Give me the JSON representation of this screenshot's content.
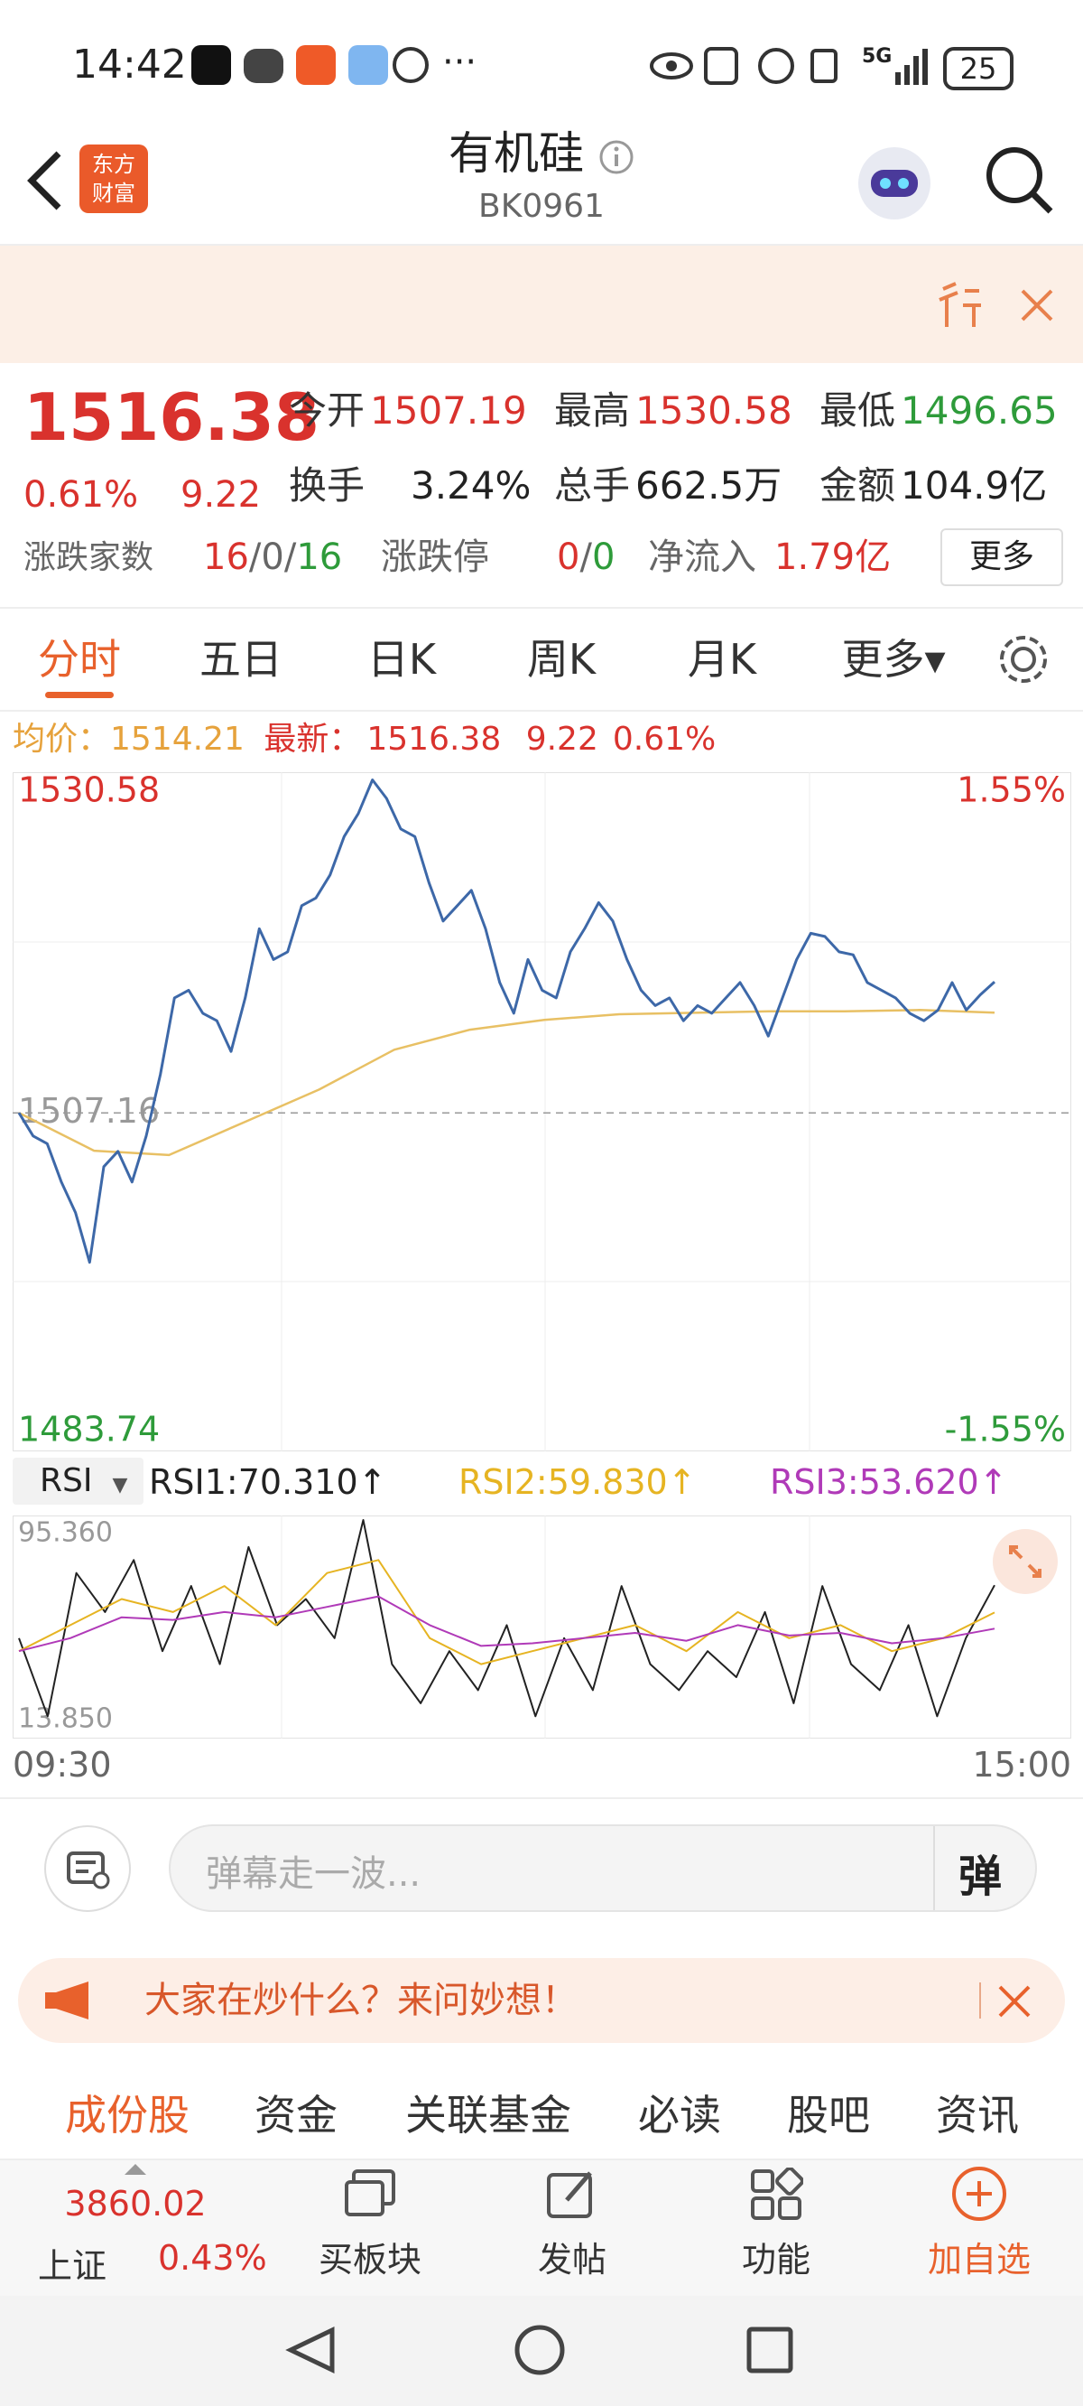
{
  "status_bar": {
    "time": "14:42",
    "network": "5G",
    "battery": "25"
  },
  "header": {
    "logo": [
      "东方",
      "财富"
    ],
    "title": "有机硅",
    "code": "BK0961"
  },
  "quote": {
    "price": "1516.38",
    "change_pct": "0.61%",
    "change": "9.22",
    "fields": [
      {
        "label": "今开",
        "value": "1507.19"
      },
      {
        "label": "最高",
        "value": "1530.58"
      },
      {
        "label": "最低",
        "value": "1496.65"
      },
      {
        "label": "换手",
        "value": "3.24%"
      },
      {
        "label": "总手",
        "value": "662.5万"
      },
      {
        "label": "金额",
        "value": "104.9亿"
      }
    ],
    "breadth": {
      "label": "涨跌家数",
      "parts": [
        "16",
        "/",
        "0",
        "/",
        "16"
      ]
    },
    "limit": {
      "label": "涨跌停",
      "parts": [
        "0",
        "/",
        "0"
      ]
    },
    "inflow": {
      "label": "净流入",
      "value": "1.79亿"
    },
    "more": "更多"
  },
  "tabs": [
    "分时",
    "五日",
    "日K",
    "周K",
    "月K",
    "更多▾"
  ],
  "info_line": [
    "均价：",
    "1514.21",
    "最新：",
    "1516.38",
    "9.22",
    "0.61%"
  ],
  "chart": {
    "type": "line",
    "ylim": [
      1483.74,
      1530.58
    ],
    "yticks": [
      1530.58,
      1507.16,
      1483.74
    ],
    "y2lim": [
      -1.55,
      1.55
    ],
    "y2ticks": [
      {
        "value": 1.55,
        "label": "1.55%"
      },
      {
        "value": -1.55,
        "label": "-1.55%"
      }
    ],
    "x_labels": [
      "09:30",
      "15:00"
    ],
    "price": {
      "color": "#3d68a8",
      "values": [
        1507.16,
        1505.54,
        1505.0,
        1502.3,
        1500.14,
        1496.65,
        1503.38,
        1504.46,
        1502.3,
        1505.54,
        1509.86,
        1515.25,
        1515.79,
        1514.17,
        1513.64,
        1511.48,
        1515.25,
        1520.11,
        1517.95,
        1518.49,
        1521.73,
        1522.27,
        1523.89,
        1526.59,
        1528.21,
        1530.58,
        1529.28,
        1527.13,
        1526.59,
        1523.35,
        1520.65,
        1521.73,
        1522.81,
        1520.11,
        1516.33,
        1514.17,
        1517.95,
        1515.79,
        1515.25,
        1518.49,
        1520.11,
        1521.95,
        1520.65,
        1517.95,
        1515.79,
        1514.71,
        1515.25,
        1513.64,
        1514.71,
        1514.17,
        1515.25,
        1516.33,
        1514.71,
        1512.56,
        1515.25,
        1517.95,
        1519.79,
        1519.57,
        1518.49,
        1518.28,
        1516.33,
        1515.79,
        1515.25,
        1514.17,
        1513.64,
        1514.39,
        1516.33,
        1514.39,
        1515.47,
        1516.38
      ]
    },
    "average": {
      "color": "#e8c064",
      "values": [
        1507.16,
        1504.5,
        1504.2,
        1506.5,
        1508.8,
        1511.6,
        1513.0,
        1513.7,
        1514.1,
        1514.2,
        1514.3,
        1514.3,
        1514.4,
        1514.21
      ]
    }
  },
  "rsi": {
    "indicator": "RSI",
    "legend": [
      "RSI1:70.310↑",
      "RSI2:59.830↑",
      "RSI3:53.620↑"
    ],
    "ylim": [
      13.85,
      95.36
    ],
    "yticks": [
      {
        "value": 95.36,
        "label": "95.360"
      },
      {
        "value": 13.85,
        "label": "13.850"
      }
    ],
    "series": [
      {
        "color": "#222222",
        "values": [
          50,
          20,
          75,
          60,
          80,
          45,
          70,
          40,
          85,
          55,
          65,
          50,
          95.36,
          40,
          25,
          45,
          30,
          55,
          20,
          50,
          30,
          70,
          40,
          30,
          45,
          35,
          60,
          25,
          70,
          40,
          30,
          55,
          20,
          50,
          70.31
        ]
      },
      {
        "color": "#e6b422",
        "values": [
          45,
          55,
          65,
          60,
          70,
          55,
          75,
          80,
          50,
          40,
          45,
          50,
          55,
          45,
          60,
          50,
          55,
          45,
          50,
          59.83
        ]
      },
      {
        "color": "#b03ab8",
        "values": [
          45,
          50,
          58,
          57,
          60,
          58,
          62,
          66,
          55,
          47,
          48,
          50,
          52,
          49,
          55,
          51,
          52,
          48,
          50,
          53.62
        ]
      }
    ]
  },
  "danmu": {
    "placeholder": "弹幕走一波...",
    "button": "弹"
  },
  "banner": "大家在炒什么？来问妙想！",
  "section_tabs": [
    "成份股",
    "资金",
    "关联基金",
    "必读",
    "股吧",
    "资讯"
  ],
  "bottom_bar": {
    "index_value": "3860.02",
    "index_name": "上证",
    "index_change": "0.43%",
    "actions": [
      "买板块",
      "发帖",
      "功能",
      "加自选"
    ]
  }
}
